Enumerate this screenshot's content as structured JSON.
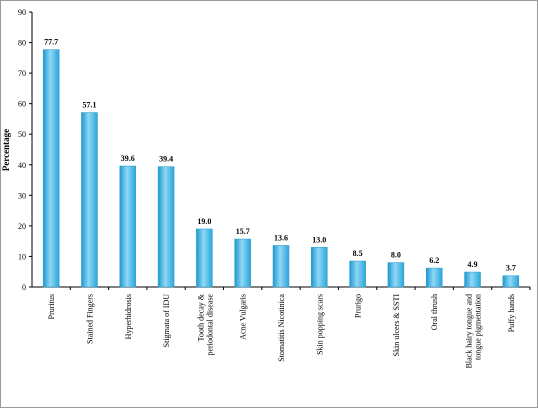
{
  "chart_data": {
    "type": "bar",
    "y_label": "Percentage",
    "categories": [
      "Pruritus",
      "Stained Fingers",
      "Hyperhidrosis",
      "Stigmata of IDU",
      "Tooth decay & periodontal disease",
      "Acne Vulgaris",
      "Stomatitis Nicotinica",
      "Skin popping scars",
      "Prurigo",
      "Skin ulcers & SSTI",
      "Oral thrush",
      "Black hairy tongue and tongue pigmentation",
      "Puffy hands"
    ],
    "values": [
      77.7,
      57.1,
      39.6,
      39.4,
      19.0,
      15.7,
      13.6,
      13.0,
      8.5,
      8.0,
      6.2,
      4.9,
      3.7
    ],
    "value_labels": [
      "77.7",
      "57.1",
      "39.6",
      "39.4",
      "19.0",
      "15.7",
      "13.6",
      "13.0",
      "8.5",
      "8.0",
      "6.2",
      "4.9",
      "3.7"
    ],
    "color": "#3bb0e0",
    "ylim": [
      0,
      90
    ],
    "yticks": [
      0,
      10,
      20,
      30,
      40,
      50,
      60,
      70,
      80,
      90
    ]
  }
}
